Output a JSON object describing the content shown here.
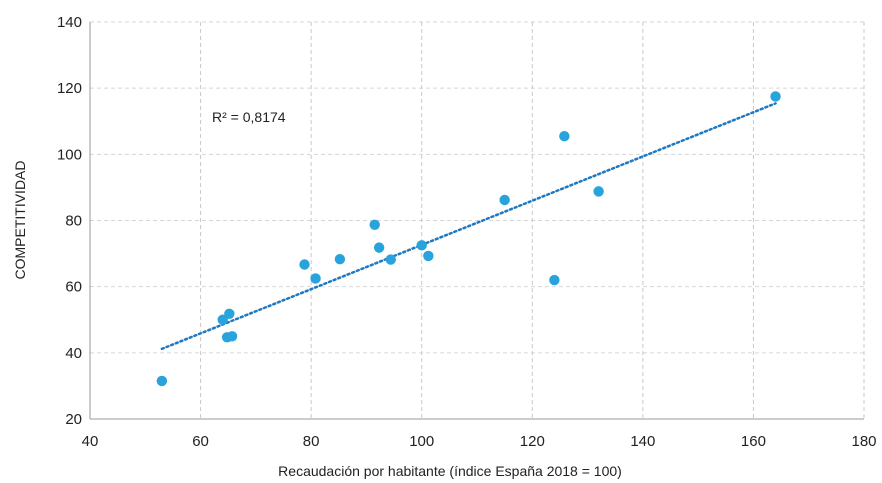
{
  "chart_data": {
    "type": "scatter",
    "title": "",
    "xlabel": "Recaudación por habitante (índice España 2018 = 100)",
    "ylabel": "COMPETITIVIDAD",
    "xlim": [
      40,
      180
    ],
    "ylim": [
      20,
      140
    ],
    "xticks": [
      40,
      60,
      80,
      100,
      120,
      140,
      160,
      180
    ],
    "yticks": [
      20,
      40,
      60,
      80,
      100,
      120,
      140
    ],
    "grid": true,
    "legend": "none",
    "point_color": "#29a3dc",
    "trendline_color": "#1f78c1",
    "annotation": "R² = 0,8174",
    "trendline": {
      "x": [
        53,
        164
      ],
      "y": [
        41.2,
        115.4
      ]
    },
    "points": {
      "x": [
        53,
        64,
        64.8,
        65.2,
        65.7,
        78.8,
        80.8,
        85.2,
        91.5,
        92.3,
        94.4,
        100,
        101.2,
        115,
        124,
        125.8,
        132,
        164
      ],
      "y": [
        31.5,
        50,
        44.7,
        51.8,
        45,
        66.7,
        62.5,
        68.3,
        78.7,
        71.8,
        68.2,
        72.5,
        69.3,
        86.2,
        62,
        105.5,
        88.8,
        117.5
      ]
    }
  }
}
